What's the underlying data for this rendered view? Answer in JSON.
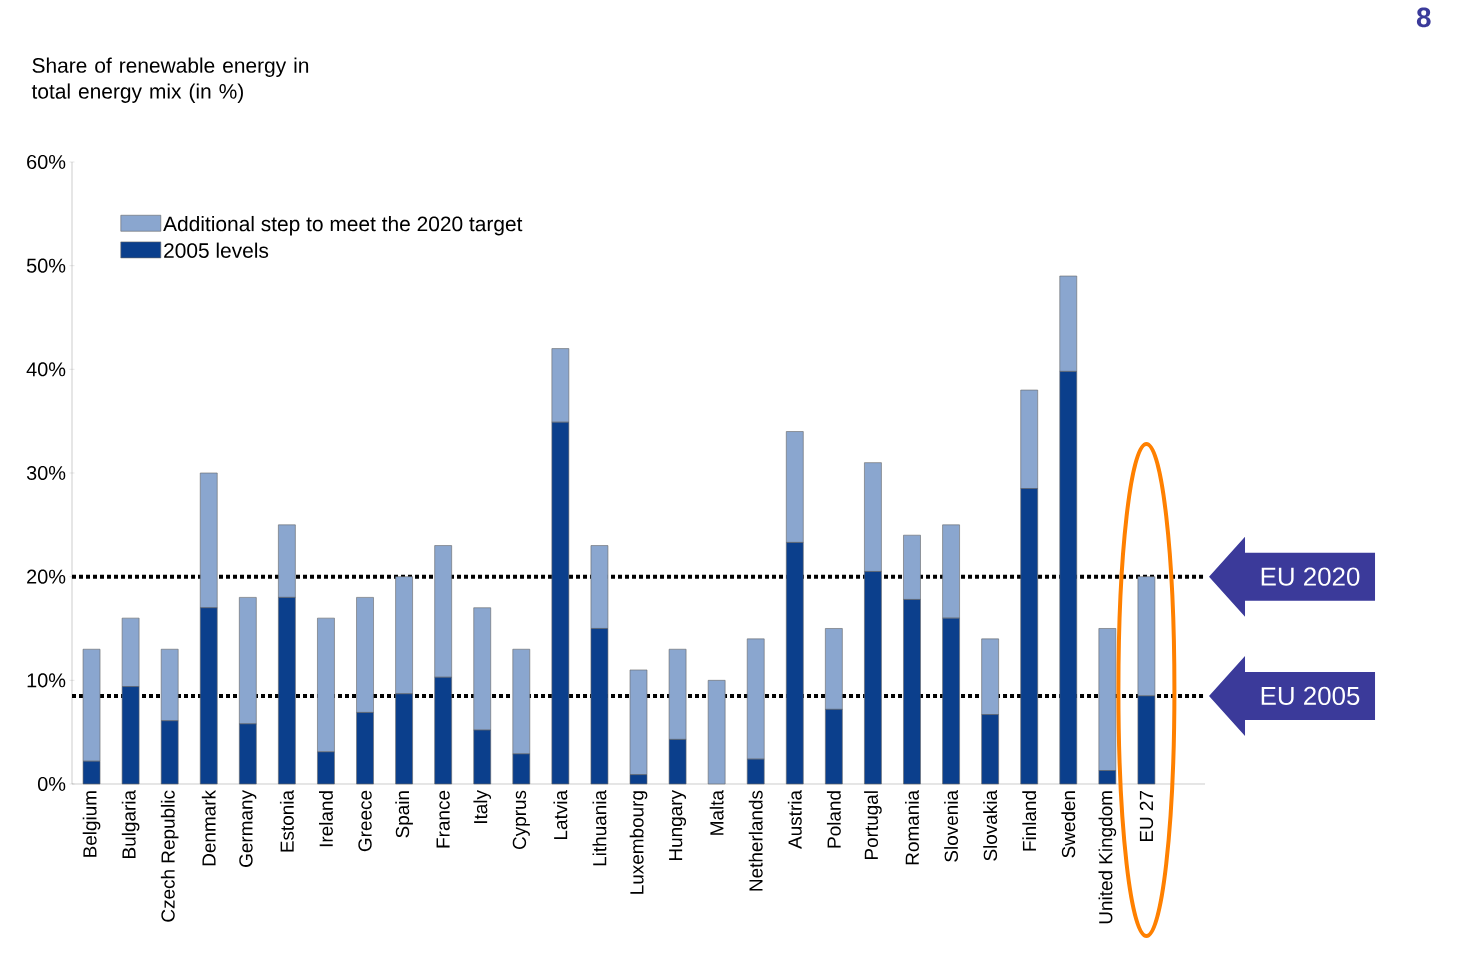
{
  "chart_data": {
    "type": "bar",
    "stacked": true,
    "title": "Share of renewable energy in total energy mix (in %)",
    "categories": [
      "Belgium",
      "Bulgaria",
      "Czech Republic",
      "Denmark",
      "Germany",
      "Estonia",
      "Ireland",
      "Greece",
      "Spain",
      "France",
      "Italy",
      "Cyprus",
      "Latvia",
      "Lithuania",
      "Luxembourg",
      "Hungary",
      "Malta",
      "Netherlands",
      "Austria",
      "Poland",
      "Portugal",
      "Romania",
      "Slovenia",
      "Slovakia",
      "Finland",
      "Sweden",
      "United Kingdom",
      "EU 27"
    ],
    "series": [
      {
        "name": "2005 levels",
        "color": "#0b3f8c",
        "values": [
          2.2,
          9.4,
          6.1,
          17,
          5.8,
          18,
          3.1,
          6.9,
          8.7,
          10.3,
          5.2,
          2.9,
          34.9,
          15,
          0.9,
          4.3,
          0,
          2.4,
          23.3,
          7.2,
          20.5,
          17.8,
          16,
          6.7,
          28.5,
          39.8,
          1.3,
          8.5
        ]
      },
      {
        "name": "Additional step to meet the 2020 target",
        "color": "#8aa6cf",
        "values": [
          10.8,
          6.6,
          6.9,
          13,
          12.2,
          7,
          12.9,
          11.1,
          11.3,
          12.7,
          11.8,
          10.1,
          7.1,
          8,
          10.1,
          8.7,
          10,
          11.6,
          10.7,
          7.8,
          10.5,
          6.2,
          9,
          7.3,
          9.5,
          9.2,
          13.7,
          11.5
        ]
      }
    ],
    "ylim": [
      0,
      60
    ],
    "yticks": [
      {
        "value": 0,
        "label": "0%"
      },
      {
        "value": 10,
        "label": "10%"
      },
      {
        "value": 20,
        "label": "20%"
      },
      {
        "value": 30,
        "label": "30%"
      },
      {
        "value": 40,
        "label": "40%"
      },
      {
        "value": 50,
        "label": "50%"
      },
      {
        "value": 60,
        "label": "60%"
      }
    ],
    "ref_lines": [
      {
        "axis": "y",
        "value": 20,
        "label": "EU 2020",
        "line_style": "dotted",
        "color": "#000000"
      },
      {
        "axis": "y",
        "value": 8.5,
        "label": "EU 2005",
        "line_style": "dotted",
        "color": "#000000"
      }
    ],
    "legend": "top left",
    "grid": false,
    "annotations": [
      "8"
    ]
  }
}
